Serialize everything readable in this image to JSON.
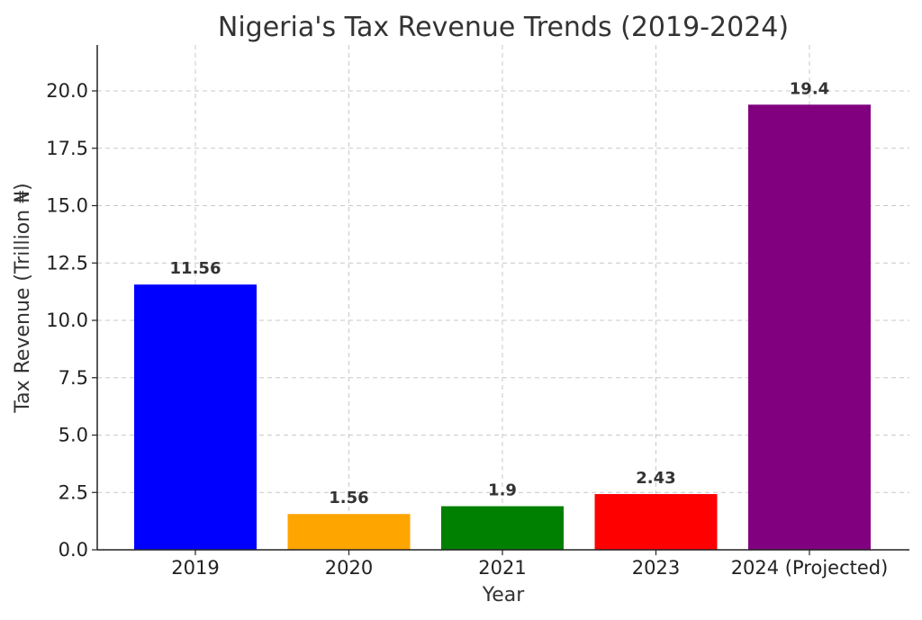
{
  "chart_data": {
    "type": "bar",
    "title": "Nigeria's Tax Revenue Trends (2019-2024)",
    "xlabel": "Year",
    "ylabel": "Tax Revenue (Trillion ₦)",
    "categories": [
      "2019",
      "2020",
      "2021",
      "2023",
      "2024 (Projected)"
    ],
    "values": [
      11.56,
      1.56,
      1.9,
      2.43,
      19.4
    ],
    "value_labels": [
      "11.56",
      "1.56",
      "1.9",
      "2.43",
      "19.4"
    ],
    "colors": [
      "#0000ff",
      "#ffa500",
      "#008000",
      "#ff0000",
      "#800080"
    ],
    "ylim": [
      0,
      22
    ],
    "yticks": [
      0,
      2.5,
      5,
      7.5,
      10,
      12.5,
      15,
      17.5,
      20
    ],
    "ytick_labels": [
      "0.0",
      "2.5",
      "5.0",
      "7.5",
      "10.0",
      "12.5",
      "15.0",
      "17.5",
      "20.0"
    ],
    "grid": true,
    "legend": "none"
  }
}
